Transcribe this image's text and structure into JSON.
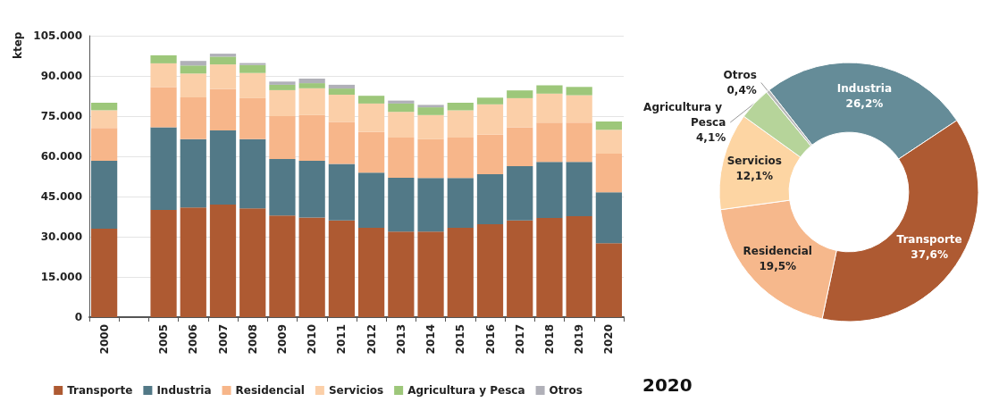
{
  "chart_data": [
    {
      "type": "bar",
      "stacked": true,
      "ylabel": "ktep",
      "legend": "bottom",
      "grid": "y",
      "categories": [
        "2000",
        null,
        "2005",
        "2006",
        "2007",
        "2008",
        "2009",
        "2010",
        "2011",
        "2012",
        "2013",
        "2014",
        "2015",
        "2016",
        "2017",
        "2018",
        "2019",
        "2020"
      ],
      "ylim": [
        0,
        105000
      ],
      "yticks": [
        0,
        {
          "value": 15000,
          "label": "15.000"
        },
        {
          "value": 30000,
          "label": "30.000"
        },
        {
          "value": 45000,
          "label": "45.000"
        },
        {
          "value": 60000,
          "label": "60.000"
        },
        {
          "value": 75000,
          "label": "75.000"
        },
        {
          "value": 90000,
          "label": "90.000"
        },
        {
          "value": 105000,
          "label": "105.000"
        }
      ],
      "series": [
        {
          "name": "Transporte",
          "color": "#ae5a32",
          "values": [
            33000,
            null,
            40000,
            40900,
            42000,
            40600,
            37900,
            37200,
            36100,
            33300,
            31900,
            31900,
            33300,
            34700,
            36100,
            37000,
            37700,
            27600
          ]
        },
        {
          "name": "Industria",
          "color": "#527987",
          "values": [
            25300,
            null,
            30800,
            25500,
            27700,
            25800,
            21100,
            21100,
            21100,
            20600,
            20100,
            20000,
            18600,
            18600,
            20200,
            20900,
            20200,
            19000
          ]
        },
        {
          "name": "Residencial",
          "color": "#f7b68a",
          "values": [
            12300,
            null,
            15000,
            15600,
            15500,
            15300,
            16000,
            17100,
            15600,
            15200,
            15000,
            14500,
            15100,
            14800,
            14500,
            14700,
            14700,
            14400
          ]
        },
        {
          "name": "Servicios",
          "color": "#fbcfa8",
          "values": [
            6600,
            null,
            8900,
            8900,
            9100,
            9400,
            9700,
            10000,
            10200,
            10600,
            9600,
            9000,
            10200,
            11300,
            10900,
            10800,
            10200,
            8900
          ]
        },
        {
          "name": "Agricultura y Pesca",
          "color": "#9dc77a",
          "values": [
            2800,
            null,
            3000,
            3000,
            2900,
            3000,
            2000,
            1900,
            2300,
            2900,
            3100,
            2900,
            2800,
            2500,
            2900,
            3100,
            3100,
            3100
          ]
        },
        {
          "name": "Otros",
          "color": "#b0b0b8",
          "values": [
            0,
            null,
            0,
            1700,
            1100,
            700,
            1200,
            1700,
            1400,
            null,
            1100,
            900,
            null,
            null,
            0,
            0,
            0,
            null
          ]
        }
      ]
    },
    {
      "type": "donut",
      "title": "2020",
      "categories": [
        "Industria",
        "Transporte",
        "Residencial",
        "Servicios",
        "Agricultura y Pesca",
        "Otros"
      ],
      "values": [
        26.2,
        37.6,
        19.5,
        12.1,
        4.1,
        0.4
      ],
      "value_labels": [
        "26,2%",
        "37,6%",
        "19,5%",
        "12,1%",
        "4,1%",
        "0,4%"
      ],
      "colors": [
        "#658c98",
        "#ae5a32",
        "#f6b88c",
        "#fdd5a3",
        "#b6d49a",
        "#b8b8b8"
      ]
    }
  ]
}
